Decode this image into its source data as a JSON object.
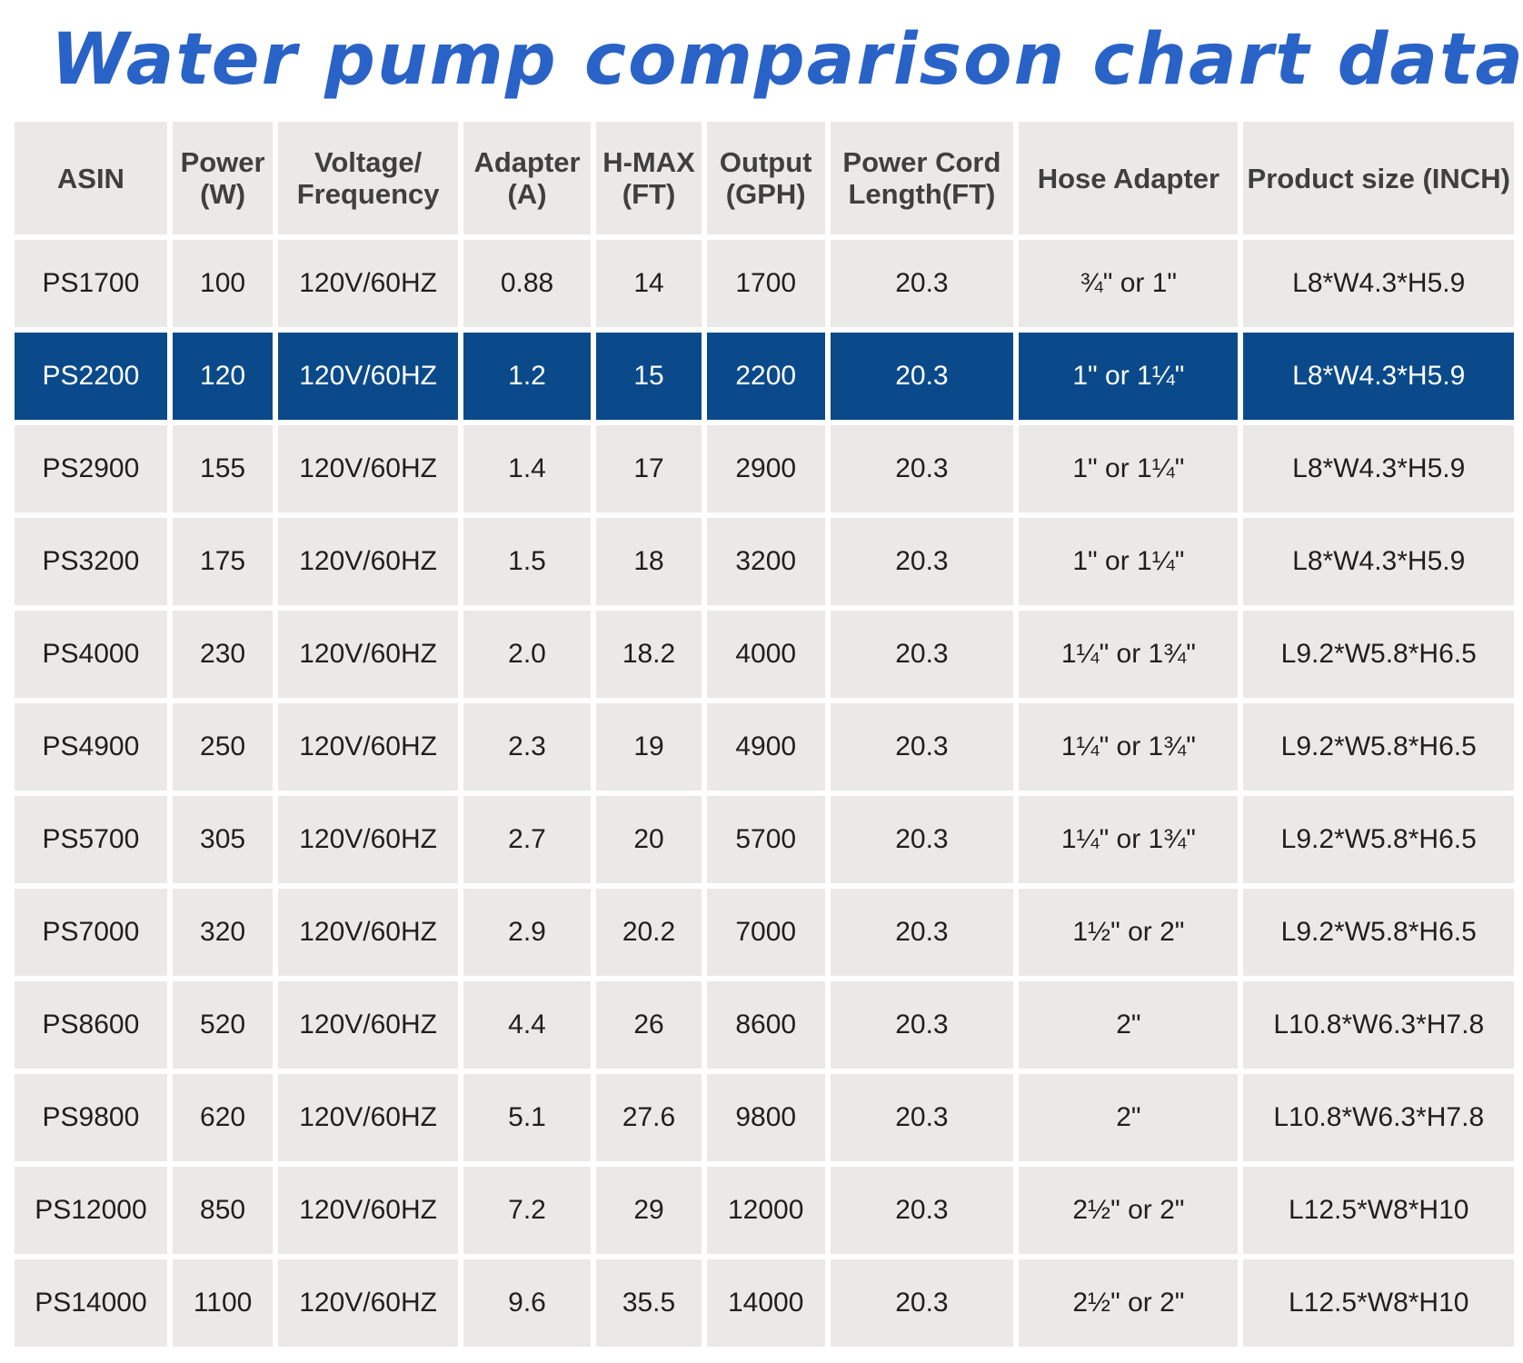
{
  "title": "Water pump comparison chart data",
  "colors": {
    "title": "#2a63c7",
    "header_background": "#ebe9e8",
    "cell_background": "#ebe9e8",
    "highlight_background": "#0b4a8a",
    "highlight_text": "#ffffff"
  },
  "highlighted_row": 1,
  "chart_data": {
    "type": "table",
    "title": "Water pump comparison chart data",
    "columns": [
      "ASIN",
      "Power (W)",
      "Voltage/ Frequency",
      "Adapter (A)",
      "H-MAX (FT)",
      "Output (GPH)",
      "Power Cord Length(FT)",
      "Hose Adapter",
      "Product size (INCH)"
    ],
    "rows": [
      [
        "PS1700",
        "100",
        "120V/60HZ",
        "0.88",
        "14",
        "1700",
        "20.3",
        "¾\" or 1\"",
        "L8*W4.3*H5.9"
      ],
      [
        "PS2200",
        "120",
        "120V/60HZ",
        "1.2",
        "15",
        "2200",
        "20.3",
        "1\" or 1¼\"",
        "L8*W4.3*H5.9"
      ],
      [
        "PS2900",
        "155",
        "120V/60HZ",
        "1.4",
        "17",
        "2900",
        "20.3",
        "1\" or 1¼\"",
        "L8*W4.3*H5.9"
      ],
      [
        "PS3200",
        "175",
        "120V/60HZ",
        "1.5",
        "18",
        "3200",
        "20.3",
        "1\" or 1¼\"",
        "L8*W4.3*H5.9"
      ],
      [
        "PS4000",
        "230",
        "120V/60HZ",
        "2.0",
        "18.2",
        "4000",
        "20.3",
        "1¼\" or 1¾\"",
        "L9.2*W5.8*H6.5"
      ],
      [
        "PS4900",
        "250",
        "120V/60HZ",
        "2.3",
        "19",
        "4900",
        "20.3",
        "1¼\" or 1¾\"",
        "L9.2*W5.8*H6.5"
      ],
      [
        "PS5700",
        "305",
        "120V/60HZ",
        "2.7",
        "20",
        "5700",
        "20.3",
        "1¼\" or 1¾\"",
        "L9.2*W5.8*H6.5"
      ],
      [
        "PS7000",
        "320",
        "120V/60HZ",
        "2.9",
        "20.2",
        "7000",
        "20.3",
        "1½\" or 2\"",
        "L9.2*W5.8*H6.5"
      ],
      [
        "PS8600",
        "520",
        "120V/60HZ",
        "4.4",
        "26",
        "8600",
        "20.3",
        "2\"",
        "L10.8*W6.3*H7.8"
      ],
      [
        "PS9800",
        "620",
        "120V/60HZ",
        "5.1",
        "27.6",
        "9800",
        "20.3",
        "2\"",
        "L10.8*W6.3*H7.8"
      ],
      [
        "PS12000",
        "850",
        "120V/60HZ",
        "7.2",
        "29",
        "12000",
        "20.3",
        "2½\" or 2\"",
        "L12.5*W8*H10"
      ],
      [
        "PS14000",
        "1100",
        "120V/60HZ",
        "9.6",
        "35.5",
        "14000",
        "20.3",
        "2½\" or 2\"",
        "L12.5*W8*H10"
      ]
    ]
  }
}
